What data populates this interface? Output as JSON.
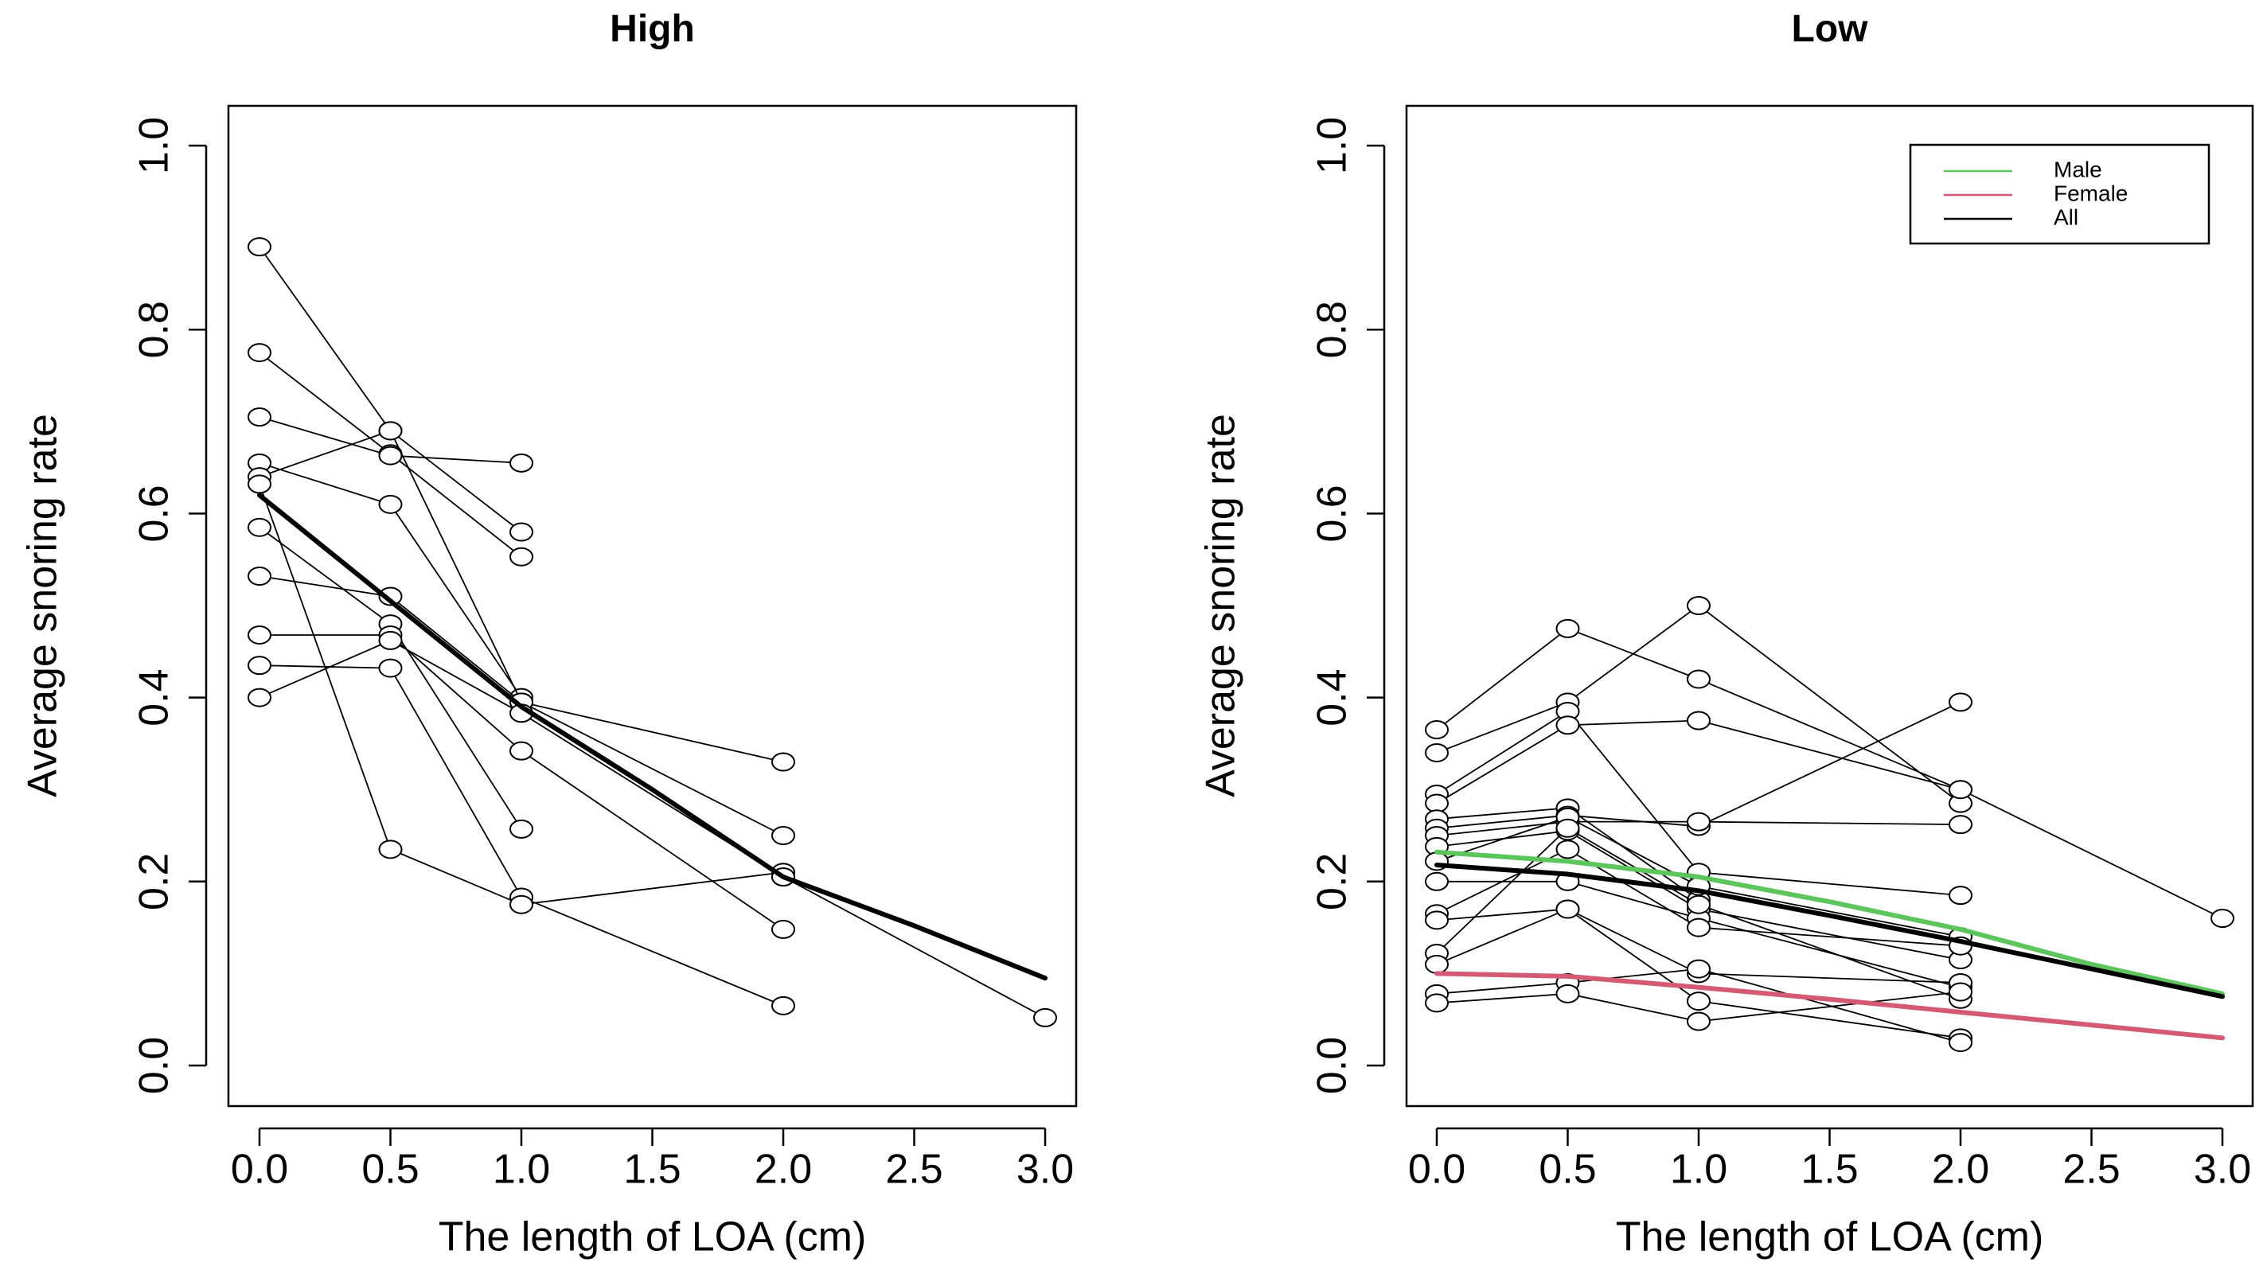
{
  "chart_data": [
    {
      "type": "line",
      "title": "High",
      "xlabel": "The length of LOA (cm)",
      "ylabel": "Average snoring rate",
      "xlim": [
        0,
        3
      ],
      "ylim": [
        0,
        1
      ],
      "xticks": [
        0,
        0.5,
        1,
        1.5,
        2,
        2.5,
        3
      ],
      "xtick_labels": [
        "0.0",
        "0.5",
        "1.0",
        "1.5",
        "2.0",
        "2.5",
        "3.0"
      ],
      "yticks": [
        0,
        0.2,
        0.4,
        0.6,
        0.8,
        1
      ],
      "ytick_labels": [
        "0.0",
        "0.2",
        "0.4",
        "0.6",
        "0.8",
        "1.0"
      ],
      "subjects": [
        {
          "x": [
            0,
            0.5,
            1
          ],
          "y": [
            0.89,
            0.69,
            0.58
          ]
        },
        {
          "x": [
            0,
            0.5,
            1
          ],
          "y": [
            0.775,
            0.665,
            0.553
          ]
        },
        {
          "x": [
            0,
            0.5,
            1
          ],
          "y": [
            0.705,
            0.663,
            0.655
          ]
        },
        {
          "x": [
            0,
            0.5,
            1
          ],
          "y": [
            0.655,
            0.61,
            0.4
          ]
        },
        {
          "x": [
            0,
            0.5,
            1,
            2
          ],
          "y": [
            0.64,
            0.69,
            0.395,
            0.25
          ]
        },
        {
          "x": [
            0,
            0.5,
            1
          ],
          "y": [
            0.585,
            0.48,
            0.257
          ]
        },
        {
          "x": [
            0,
            0.5,
            1,
            2
          ],
          "y": [
            0.532,
            0.51,
            0.395,
            0.33
          ]
        },
        {
          "x": [
            0,
            0.5,
            1,
            2
          ],
          "y": [
            0.468,
            0.468,
            0.342,
            0.148
          ]
        },
        {
          "x": [
            0,
            0.5,
            1,
            2
          ],
          "y": [
            0.435,
            0.432,
            0.183,
            0.065
          ]
        },
        {
          "x": [
            0,
            0.5,
            1,
            2
          ],
          "y": [
            0.4,
            0.462,
            0.383,
            0.205
          ]
        },
        {
          "x": [
            0,
            0.5,
            1,
            2
          ],
          "y": [
            0.632,
            0.235,
            0.175,
            0.21
          ]
        },
        {
          "x": [
            2,
            3
          ],
          "y": [
            0.205,
            0.052
          ]
        }
      ],
      "series": [
        {
          "name": "All",
          "color": "#000000",
          "x": [
            0,
            0.5,
            1,
            1.5,
            2,
            2.5,
            3
          ],
          "y": [
            0.62,
            0.505,
            0.39,
            0.3,
            0.205,
            0.152,
            0.095
          ]
        }
      ]
    },
    {
      "type": "line",
      "title": "Low",
      "xlabel": "The length of LOA (cm)",
      "ylabel": "Average snoring rate",
      "xlim": [
        0,
        3
      ],
      "ylim": [
        0,
        1
      ],
      "xticks": [
        0,
        0.5,
        1,
        1.5,
        2,
        2.5,
        3
      ],
      "xtick_labels": [
        "0.0",
        "0.5",
        "1.0",
        "1.5",
        "2.0",
        "2.5",
        "3.0"
      ],
      "yticks": [
        0,
        0.2,
        0.4,
        0.6,
        0.8,
        1
      ],
      "ytick_labels": [
        "0.0",
        "0.2",
        "0.4",
        "0.6",
        "0.8",
        "1.0"
      ],
      "legend": {
        "position": "top-right",
        "entries": [
          {
            "label": "Male",
            "color": "#5cc55c"
          },
          {
            "label": "Female",
            "color": "#d45a73"
          },
          {
            "label": "All",
            "color": "#000000"
          }
        ]
      },
      "subjects": [
        {
          "x": [
            0,
            0.5,
            1,
            2
          ],
          "y": [
            0.365,
            0.475,
            0.42,
            0.3
          ]
        },
        {
          "x": [
            0,
            0.5,
            1,
            2
          ],
          "y": [
            0.34,
            0.395,
            0.5,
            0.285
          ]
        },
        {
          "x": [
            0,
            0.5,
            1,
            2
          ],
          "y": [
            0.295,
            0.385,
            0.21,
            0.185
          ]
        },
        {
          "x": [
            0,
            0.5,
            1,
            2,
            3
          ],
          "y": [
            0.285,
            0.37,
            0.375,
            0.3,
            0.16
          ]
        },
        {
          "x": [
            0,
            0.5,
            1
          ],
          "y": [
            0.268,
            0.28,
            0.18
          ]
        },
        {
          "x": [
            0,
            0.5,
            1,
            2
          ],
          "y": [
            0.258,
            0.272,
            0.26,
            0.395
          ]
        },
        {
          "x": [
            0,
            0.5,
            1,
            2
          ],
          "y": [
            0.25,
            0.265,
            0.265,
            0.262
          ]
        },
        {
          "x": [
            0,
            0.5,
            1,
            2
          ],
          "y": [
            0.238,
            0.255,
            0.17,
            0.115
          ]
        },
        {
          "x": [
            0,
            0.5,
            1,
            2
          ],
          "y": [
            0.222,
            0.27,
            0.195,
            0.14
          ]
        },
        {
          "x": [
            0,
            0.5,
            1,
            2
          ],
          "y": [
            0.2,
            0.2,
            0.16,
            0.085
          ]
        },
        {
          "x": [
            0,
            0.5,
            1,
            2
          ],
          "y": [
            0.165,
            0.235,
            0.15,
            0.13
          ]
        },
        {
          "x": [
            0,
            0.5,
            1,
            2
          ],
          "y": [
            0.158,
            0.17,
            0.1,
            0.09
          ]
        },
        {
          "x": [
            0,
            0.5,
            1,
            2
          ],
          "y": [
            0.122,
            0.258,
            0.175,
            0.072
          ]
        },
        {
          "x": [
            0,
            0.5,
            1,
            2
          ],
          "y": [
            0.11,
            0.17,
            0.07,
            0.03
          ]
        },
        {
          "x": [
            0,
            0.5,
            1,
            2
          ],
          "y": [
            0.078,
            0.09,
            0.105,
            0.025
          ]
        },
        {
          "x": [
            0,
            0.5,
            1,
            2
          ],
          "y": [
            0.068,
            0.078,
            0.048,
            0.08
          ]
        }
      ],
      "series": [
        {
          "name": "Male",
          "color": "#5cc55c",
          "x": [
            0,
            0.5,
            1,
            1.5,
            2,
            2.5,
            3
          ],
          "y": [
            0.232,
            0.222,
            0.205,
            0.178,
            0.148,
            0.11,
            0.078
          ]
        },
        {
          "name": "Female",
          "color": "#d45a73",
          "x": [
            0,
            0.5,
            1,
            1.5,
            2,
            2.5,
            3
          ],
          "y": [
            0.1,
            0.097,
            0.085,
            0.072,
            0.058,
            0.044,
            0.03
          ]
        },
        {
          "name": "All",
          "color": "#000000",
          "x": [
            0,
            0.5,
            1,
            1.5,
            2,
            2.5,
            3
          ],
          "y": [
            0.218,
            0.208,
            0.19,
            0.163,
            0.135,
            0.105,
            0.075
          ]
        }
      ]
    }
  ]
}
